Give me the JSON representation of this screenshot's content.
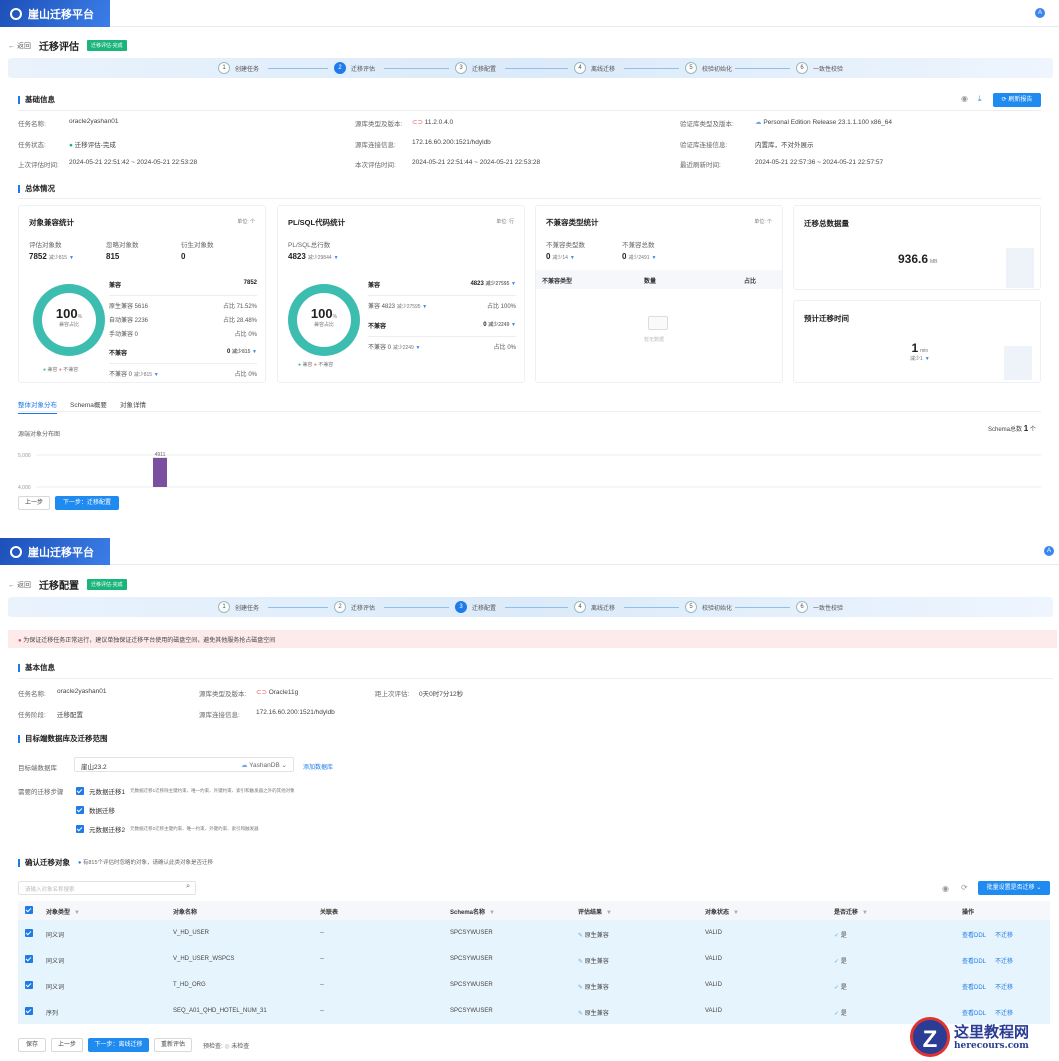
{
  "app": {
    "title": "崖山迁移平台",
    "avatar": "A"
  },
  "screen1": {
    "back": "返回",
    "title": "迁移评估",
    "status_tag": "迁移评估-完成",
    "steps": [
      {
        "n": "1",
        "label": "创建任务"
      },
      {
        "n": "2",
        "label": "迁移评估"
      },
      {
        "n": "3",
        "label": "迁移配置"
      },
      {
        "n": "4",
        "label": "离线迁移"
      },
      {
        "n": "5",
        "label": "校验初始化"
      },
      {
        "n": "6",
        "label": "一致性校验"
      }
    ],
    "basic_title": "基础信息",
    "refresh_label": "刷新报告",
    "info": [
      {
        "label": "任务名称:",
        "value": "oracle2yashan01"
      },
      {
        "label": "源库类型及版本:",
        "value": "11.2.0.4.0"
      },
      {
        "label": "验证库类型及版本:",
        "value": "Personal Edition Release 23.1.1.100 x86_64"
      },
      {
        "label": "任务状态:",
        "value": "迁移评估-完成"
      },
      {
        "label": "源库连接信息:",
        "value": "172.16.60.200:1521/hdyldb"
      },
      {
        "label": "验证库连接信息:",
        "value": "内置库，不对外展示"
      },
      {
        "label": "上次评估时间:",
        "value": "2024-05-21 22:51:42 ~ 2024-05-21 22:53:28"
      },
      {
        "label": "本次评估时间:",
        "value": "2024-05-21 22:51:44 ~ 2024-05-21 22:53:28"
      },
      {
        "label": "最近刷新时间:",
        "value": "2024-05-21 22:57:36 ~ 2024-05-21 22:57:57"
      }
    ],
    "overall_title": "总体情况",
    "obj_card": {
      "title": "对象兼容统计",
      "unit": "单位: 个",
      "stats": [
        {
          "label": "评估对象数",
          "value": "7852",
          "delta": "减少815"
        },
        {
          "label": "忽略对象数",
          "value": "815"
        },
        {
          "label": "衍生对象数",
          "value": "0"
        }
      ],
      "percent": "100",
      "pct_sign": "%",
      "pct_label": "兼容占比",
      "compat": "兼容",
      "compat_total": "7852",
      "rows": [
        {
          "l": "原生兼容 5616",
          "r": "占比 71.52%"
        },
        {
          "l": "自动兼容 2236",
          "r": "占比 28.48%"
        },
        {
          "l": "手动兼容 0",
          "r": "占比 0%"
        }
      ],
      "incompat": "不兼容",
      "incompat_total": "0",
      "incompat_delta": "减少815",
      "incompat_row": {
        "l": "不兼容 0",
        "delta": "减少815",
        "r": "占比 0%"
      },
      "legend": [
        "兼容",
        "不兼容"
      ]
    },
    "plsql_card": {
      "title": "PL/SQL代码统计",
      "unit": "单位: 行",
      "stat_label": "PL/SQL总行数",
      "stat_value": "4823",
      "stat_delta": "减少29844",
      "percent": "100",
      "pct_sign": "%",
      "pct_label": "兼容占比",
      "compat": "兼容",
      "compat_total": "4823",
      "compat_delta": "减少27595",
      "compat_row": {
        "l": "兼容 4823",
        "delta": "减少27595",
        "r": "占比 100%"
      },
      "incompat": "不兼容",
      "incompat_total": "0",
      "incompat_delta": "减少2249",
      "incompat_row": {
        "l": "不兼容 0",
        "delta": "减少2249",
        "r": "占比 0%"
      },
      "legend": [
        "兼容",
        "不兼容"
      ]
    },
    "incompat_card": {
      "title": "不兼容类型统计",
      "unit": "单位: 个",
      "stats": [
        {
          "label": "不兼容类型数",
          "value": "0",
          "delta": "减少14"
        },
        {
          "label": "不兼容总数",
          "value": "0",
          "delta": "减少2491"
        }
      ],
      "cols": [
        "不兼容类型",
        "数量",
        "占比"
      ],
      "empty": "暂无数据"
    },
    "size_card": {
      "title": "迁移总数据量",
      "value": "936.6",
      "unit": "MB"
    },
    "time_card": {
      "title": "预计迁移时间",
      "value": "1",
      "unit": "min",
      "delta": "减少1"
    },
    "tabs": [
      "整体对象分布",
      "Schema概要",
      "对象详情"
    ],
    "chart_data": {
      "type": "bar",
      "title": "源端对象分布图",
      "categories": [
        ""
      ],
      "values": [
        4911
      ],
      "y_ticks": [
        "5,000",
        "4,000"
      ],
      "ylim": [
        3900,
        5100
      ],
      "schema_total_label": "Schema总数",
      "schema_total": "1",
      "schema_unit": "个"
    },
    "prev": "上一步",
    "next": "下一步：迁移配置"
  },
  "screen2": {
    "back": "返回",
    "title": "迁移配置",
    "status_tag": "迁移评估-完成",
    "steps": [
      {
        "n": "1",
        "label": "创建任务"
      },
      {
        "n": "2",
        "label": "迁移评估"
      },
      {
        "n": "3",
        "label": "迁移配置"
      },
      {
        "n": "4",
        "label": "离线迁移"
      },
      {
        "n": "5",
        "label": "校验初始化"
      },
      {
        "n": "6",
        "label": "一致性校验"
      }
    ],
    "alert": "为保证迁移任务正常运行，建议单独保证迁移平台使用的磁盘空间，避免其他服务抢占磁盘空间",
    "basic_title": "基本信息",
    "info": [
      {
        "label": "任务名称:",
        "value": "oracle2yashan01"
      },
      {
        "label": "源库类型及版本:",
        "value": "Oracle11g"
      },
      {
        "label": "距上次评估:",
        "value": "0天0时7分12秒"
      },
      {
        "label": "任务阶段:",
        "value": "迁移配置"
      },
      {
        "label": "源库连接信息:",
        "value": "172.16.60.200:1521/hdyldb"
      }
    ],
    "target_title": "目标端数据库及迁移范围",
    "target_label": "目标端数据库",
    "target_value": "崖山23.2",
    "target_type": "YashanDB",
    "add_db": "添加数据库",
    "steps_label": "需要的迁移步骤",
    "migrate_steps": [
      {
        "label": "元数据迁移1",
        "desc": "元数据迁移1迁移除主键约束、唯一约束、外键约束、索引和触发器之外的其他对象"
      },
      {
        "label": "数据迁移",
        "desc": ""
      },
      {
        "label": "元数据迁移2",
        "desc": "元数据迁移2迁移主键约束、唯一约束、外键约束、索引和触发器"
      }
    ],
    "confirm_title": "确认迁移对象",
    "confirm_hint": "有815个评估时忽略的对象，请确认此类对象是否迁移",
    "search_placeholder": "请输入对象名称搜索",
    "batch_label": "批量设置是否迁移",
    "columns": [
      "对象类型",
      "对象名称",
      "关联表",
      "Schema名称",
      "评估结果",
      "对象状态",
      "是否迁移",
      "操作"
    ],
    "rows": [
      {
        "type": "同义词",
        "name": "V_HD_USER",
        "rel": "--",
        "schema": "SPCSYWUSER",
        "result": "原生兼容",
        "state": "VALID",
        "migrate": "是",
        "ddl": "查看DDL",
        "skip": "不迁移"
      },
      {
        "type": "同义词",
        "name": "V_HD_USER_WSPCS",
        "rel": "--",
        "schema": "SPCSYWUSER",
        "result": "原生兼容",
        "state": "VALID",
        "migrate": "是",
        "ddl": "查看DDL",
        "skip": "不迁移"
      },
      {
        "type": "同义词",
        "name": "T_HD_ORG",
        "rel": "--",
        "schema": "SPCSYWUSER",
        "result": "原生兼容",
        "state": "VALID",
        "migrate": "是",
        "ddl": "查看DDL",
        "skip": "不迁移"
      },
      {
        "type": "序列",
        "name": "SEQ_A01_QHD_HOTEL_NUM_31",
        "rel": "--",
        "schema": "SPCSYWUSER",
        "result": "原生兼容",
        "state": "VALID",
        "migrate": "是",
        "ddl": "查看DDL",
        "skip": "不迁移"
      }
    ],
    "save": "保存",
    "prev": "上一步",
    "next": "下一步：离线迁移",
    "reassess": "重新评估",
    "precheck_label": "预检查:",
    "precheck_value": "未检查"
  },
  "watermark": {
    "title": "这里教程网",
    "url": "herecours.com"
  }
}
